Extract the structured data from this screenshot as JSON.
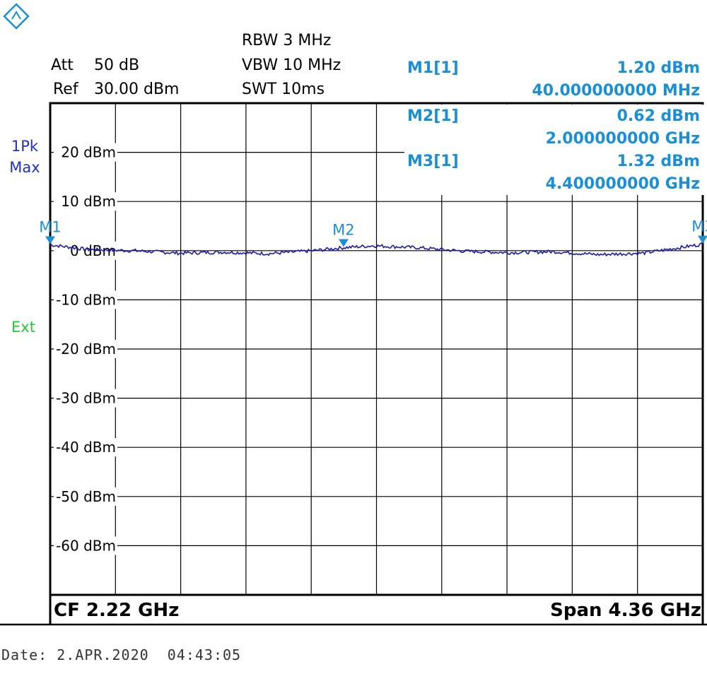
{
  "header": {
    "att_label": "Att",
    "att_value": "50 dB",
    "ref_label": "Ref",
    "ref_value": "30.00 dBm",
    "rbw": "RBW 3 MHz",
    "vbw": "VBW 10 MHz",
    "swt": "SWT 10ms"
  },
  "trace_info": {
    "line1": "1Pk",
    "line2": "Max"
  },
  "trigger": "Ext",
  "markers": [
    {
      "label": "M1[1]",
      "level": "1.20 dBm",
      "freq": "40.000000000 MHz"
    },
    {
      "label": "M2[1]",
      "level": "0.62 dBm",
      "freq": "2.000000000 GHz"
    },
    {
      "label": "M3[1]",
      "level": "1.32 dBm",
      "freq": "4.400000000 GHz"
    }
  ],
  "footer": {
    "cf": "CF 2.22 GHz",
    "span": "Span 4.36 GHz"
  },
  "date": "Date: 2.APR.2020  04:43:05",
  "colors": {
    "trace": "#1c1ca8",
    "marker": "#1a8fd6",
    "ext": "#22c93a",
    "trace_label": "#1f2fcc"
  },
  "chart_data": {
    "type": "line",
    "xlim": [
      40,
      4400
    ],
    "x_unit": "MHz",
    "ylim": [
      -70,
      30
    ],
    "y_unit": "dBm",
    "grid": true,
    "y_tick_labels": [
      "20 dBm",
      "10 dBm",
      "0 dBm",
      "-10 dBm",
      "-20 dBm",
      "-30 dBm",
      "-40 dBm",
      "-50 dBm",
      "-60 dBm"
    ],
    "y_tick_values": [
      20,
      10,
      0,
      -10,
      -20,
      -30,
      -40,
      -50,
      -60
    ],
    "series": [
      {
        "x": [
          40,
          300,
          600,
          900,
          1200,
          1500,
          1800,
          2000,
          2200,
          2500,
          2800,
          3100,
          3400,
          3700,
          4000,
          4200,
          4400
        ],
        "y": [
          1.2,
          0.2,
          0.0,
          -0.5,
          -0.3,
          -0.6,
          0.0,
          0.62,
          1.0,
          0.6,
          -0.1,
          -0.4,
          -0.2,
          -0.8,
          -0.5,
          0.4,
          1.32
        ]
      }
    ],
    "markers": [
      {
        "name": "M1",
        "x": 40,
        "y": 1.2
      },
      {
        "name": "M2",
        "x": 2000,
        "y": 0.62
      },
      {
        "name": "M3",
        "x": 4400,
        "y": 1.32
      }
    ]
  }
}
